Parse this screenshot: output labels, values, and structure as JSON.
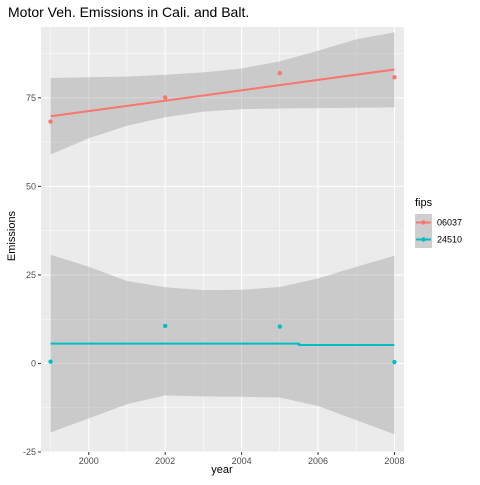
{
  "chart_data": {
    "type": "scatter",
    "title": "Motor Veh. Emissions in Cali. and Balt.",
    "xlabel": "year",
    "ylabel": "Emissions",
    "xlim": [
      1998.75,
      2008.25
    ],
    "ylim": [
      -25,
      95
    ],
    "x_ticks": [
      2000,
      2002,
      2004,
      2006,
      2008
    ],
    "y_ticks": [
      -25,
      0,
      25,
      50,
      75
    ],
    "x_tick_labels": [
      "2000",
      "2002",
      "2004",
      "2006",
      "2008"
    ],
    "y_tick_labels": [
      "-25",
      "0",
      "25",
      "50",
      "75"
    ],
    "grid": true,
    "legend": {
      "title": "fips",
      "position": "right"
    },
    "series": [
      {
        "name": "06037",
        "color": "#f8766d",
        "points": [
          {
            "x": 1999,
            "y": 68.3
          },
          {
            "x": 2002,
            "y": 75.1
          },
          {
            "x": 2005,
            "y": 82.0
          },
          {
            "x": 2008,
            "y": 80.8
          }
        ],
        "smooth": [
          {
            "x": 1999,
            "y": 69.8
          },
          {
            "x": 2008,
            "y": 83.0
          }
        ],
        "band": {
          "x": [
            1999,
            2000,
            2001,
            2002,
            2003,
            2004,
            2005,
            2006,
            2007,
            2008
          ],
          "lower": [
            59.0,
            63.6,
            67.1,
            69.5,
            71.1,
            71.8,
            72.0,
            72.1,
            72.2,
            72.3
          ],
          "upper": [
            80.6,
            80.8,
            81.0,
            81.5,
            82.2,
            83.3,
            85.3,
            88.3,
            91.5,
            93.5
          ]
        }
      },
      {
        "name": "24510",
        "color": "#00bfc4",
        "points": [
          {
            "x": 1999,
            "y": 0.5
          },
          {
            "x": 2002,
            "y": 10.6
          },
          {
            "x": 2005,
            "y": 10.4
          },
          {
            "x": 2008,
            "y": 0.4
          }
        ],
        "smooth": [
          {
            "x": 1999,
            "y": 5.6
          },
          {
            "x": 2005.5,
            "y": 5.6
          },
          {
            "x": 2005.5,
            "y": 5.2
          },
          {
            "x": 2008,
            "y": 5.2
          }
        ],
        "band": {
          "x": [
            1999,
            2000,
            2001,
            2002,
            2003,
            2004,
            2005,
            2006,
            2007,
            2008
          ],
          "lower": [
            -19.5,
            -15.5,
            -11.5,
            -9.0,
            -9.3,
            -9.4,
            -9.6,
            -12.0,
            -16.0,
            -20.0
          ],
          "upper": [
            30.7,
            27.3,
            23.3,
            21.5,
            20.7,
            20.8,
            21.6,
            24.0,
            27.3,
            30.4
          ]
        }
      }
    ]
  }
}
